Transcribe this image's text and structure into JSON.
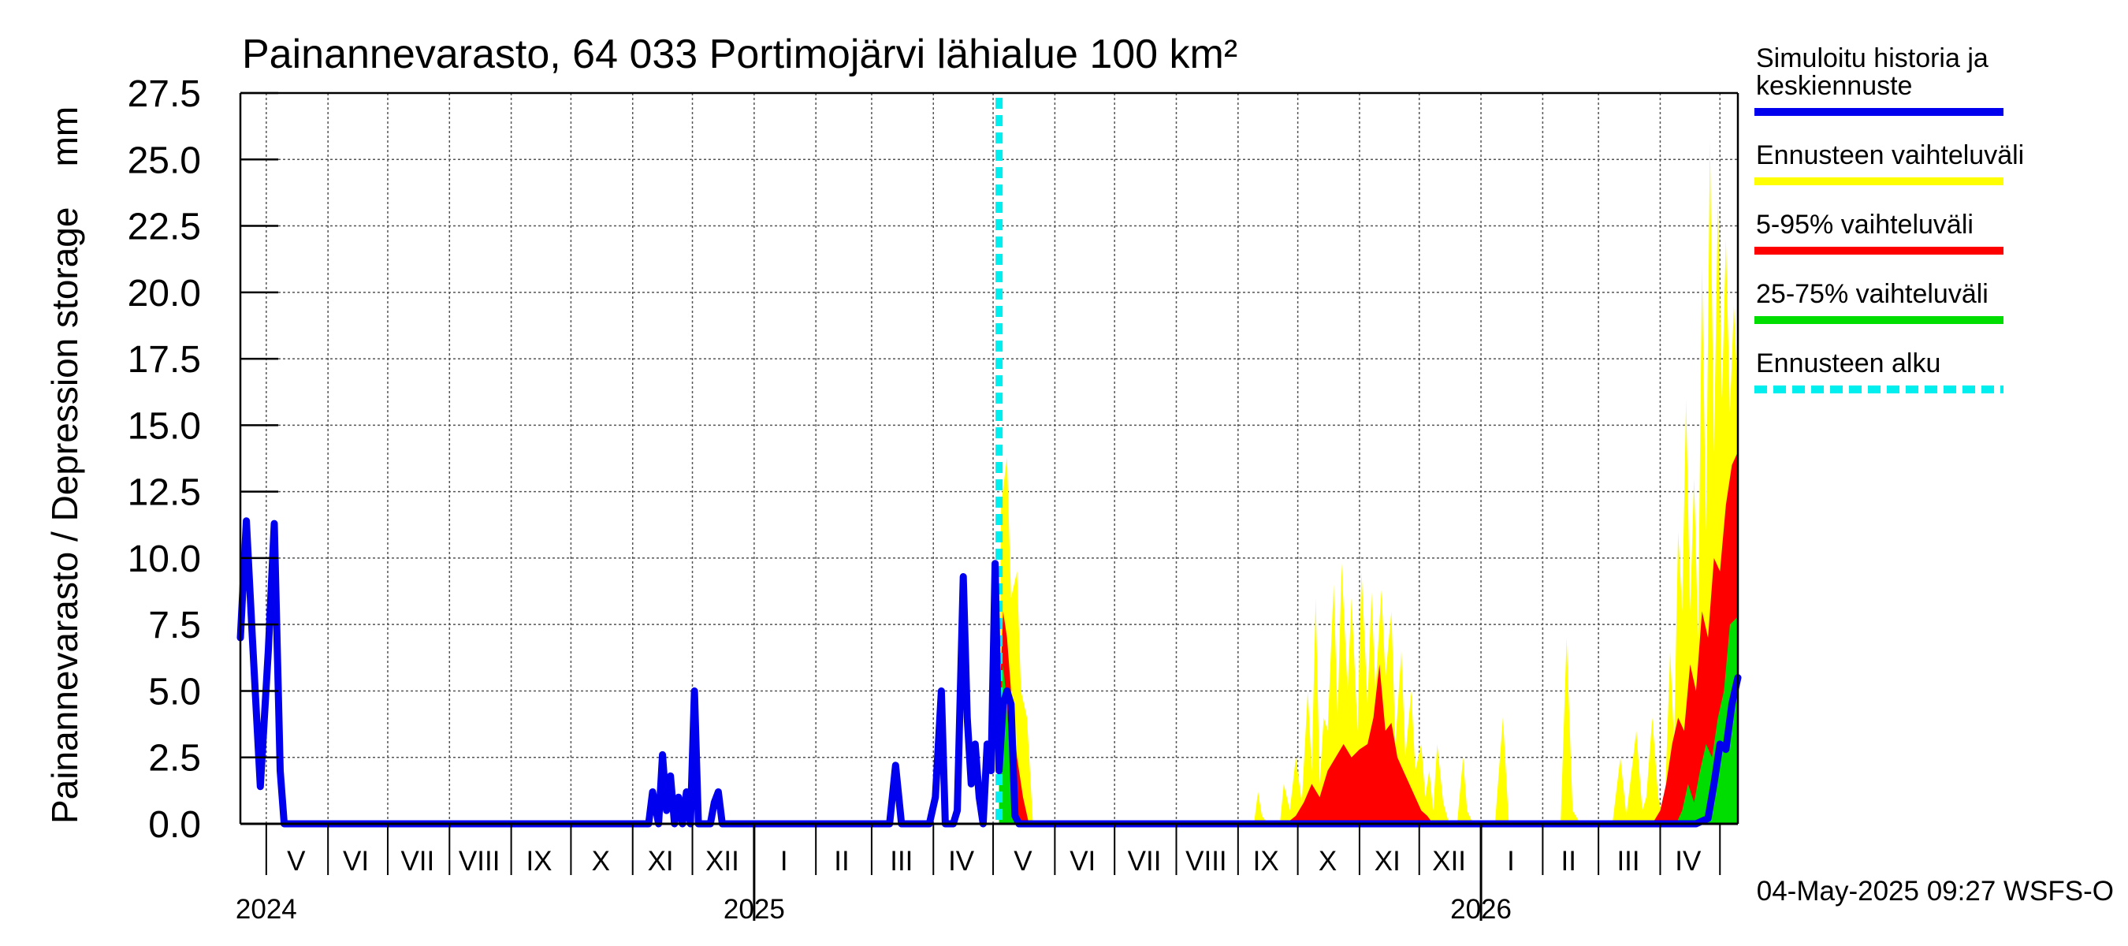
{
  "chart_data": {
    "type": "area",
    "title": "Painannevarasto, 64 033 Portimojärvi lähialue 100 km²",
    "ylabel": "Painannevarasto / Depression storage    mm",
    "ylim": [
      0,
      27.5
    ],
    "yticks": [
      "0.0",
      "2.5",
      "5.0",
      "7.5",
      "10.0",
      "12.5",
      "15.0",
      "17.5",
      "20.0",
      "22.5",
      "25.0",
      "27.5"
    ],
    "xlim": [
      "2024-04-18",
      "2026-05-10"
    ],
    "forecast_start": "2025-05-04",
    "grid": true,
    "legend_position": "right",
    "month_labels": [
      {
        "label": "V",
        "date": "2024-05-16"
      },
      {
        "label": "VI",
        "date": "2024-06-15"
      },
      {
        "label": "VII",
        "date": "2024-07-16"
      },
      {
        "label": "VIII",
        "date": "2024-08-16"
      },
      {
        "label": "IX",
        "date": "2024-09-15"
      },
      {
        "label": "X",
        "date": "2024-10-16"
      },
      {
        "label": "XI",
        "date": "2024-11-15"
      },
      {
        "label": "XII",
        "date": "2024-12-16"
      },
      {
        "label": "I",
        "date": "2025-01-16"
      },
      {
        "label": "II",
        "date": "2025-02-14"
      },
      {
        "label": "III",
        "date": "2025-03-16"
      },
      {
        "label": "IV",
        "date": "2025-04-15"
      },
      {
        "label": "V",
        "date": "2025-05-16"
      },
      {
        "label": "VI",
        "date": "2025-06-15"
      },
      {
        "label": "VII",
        "date": "2025-07-16"
      },
      {
        "label": "VIII",
        "date": "2025-08-16"
      },
      {
        "label": "IX",
        "date": "2025-09-15"
      },
      {
        "label": "X",
        "date": "2025-10-16"
      },
      {
        "label": "XI",
        "date": "2025-11-15"
      },
      {
        "label": "XII",
        "date": "2025-12-16"
      },
      {
        "label": "I",
        "date": "2026-01-16"
      },
      {
        "label": "II",
        "date": "2026-02-14"
      },
      {
        "label": "III",
        "date": "2026-03-16"
      },
      {
        "label": "IV",
        "date": "2026-04-15"
      }
    ],
    "year_labels": [
      {
        "label": "2024",
        "date": "2024-05-01"
      },
      {
        "label": "2025",
        "date": "2025-01-01"
      },
      {
        "label": "2026",
        "date": "2026-01-01"
      }
    ],
    "legend": [
      {
        "label": "Simuloitu historia ja keskiennuste",
        "lines": [
          "Simuloitu historia ja",
          "keskiennuste"
        ],
        "color": "#0000ee",
        "style": "solid"
      },
      {
        "label": "Ennusteen vaihteluväli",
        "lines": [
          "Ennusteen vaihteluväli"
        ],
        "color": "#ffff00",
        "style": "solid"
      },
      {
        "label": "5-95% vaihteluväli",
        "lines": [
          "5-95% vaihteluväli"
        ],
        "color": "#ff0000",
        "style": "solid"
      },
      {
        "label": "25-75% vaihteluväli",
        "lines": [
          "25-75% vaihteluväli"
        ],
        "color": "#00dd00",
        "style": "solid"
      },
      {
        "label": "Ennusteen alku",
        "lines": [
          "Ennusteen alku"
        ],
        "color": "#00eeee",
        "style": "dashed"
      }
    ],
    "series": [
      {
        "name": "Simuloitu historia ja keskiennuste",
        "color": "#0000ee",
        "x": [
          "2024-04-18",
          "2024-04-21",
          "2024-04-24",
          "2024-04-28",
          "2024-05-02",
          "2024-05-05",
          "2024-05-08",
          "2024-05-10",
          "2024-05-13",
          "2024-05-16",
          "2024-05-20",
          "2024-11-09",
          "2024-11-11",
          "2024-11-14",
          "2024-11-16",
          "2024-11-18",
          "2024-11-20",
          "2024-11-22",
          "2024-11-24",
          "2024-11-26",
          "2024-11-28",
          "2024-11-30",
          "2024-12-02",
          "2024-12-04",
          "2024-12-06",
          "2024-12-08",
          "2024-12-10",
          "2024-12-12",
          "2024-12-14",
          "2024-12-16",
          "2024-12-18",
          "2024-12-20",
          "2024-12-22",
          "2024-12-24",
          "2024-12-27",
          "2024-12-30",
          "2025-03-08",
          "2025-03-10",
          "2025-03-13",
          "2025-03-16",
          "2025-03-30",
          "2025-04-02",
          "2025-04-05",
          "2025-04-07",
          "2025-04-09",
          "2025-04-11",
          "2025-04-13",
          "2025-04-16",
          "2025-04-18",
          "2025-04-20",
          "2025-04-22",
          "2025-04-24",
          "2025-04-26",
          "2025-04-28",
          "2025-04-30",
          "2025-05-02",
          "2025-05-04",
          "2025-05-06",
          "2025-05-08",
          "2025-05-10",
          "2025-05-12",
          "2025-05-14",
          "2025-05-17",
          "2025-05-20",
          "2026-04-15",
          "2026-04-19",
          "2026-04-22",
          "2026-04-25",
          "2026-04-28",
          "2026-05-01",
          "2026-05-04",
          "2026-05-07",
          "2026-05-10"
        ],
        "y": [
          7.0,
          11.4,
          7.0,
          1.4,
          6.5,
          11.3,
          2.0,
          0,
          0,
          0,
          0,
          0,
          1.2,
          0,
          2.6,
          0.5,
          1.8,
          0,
          1.0,
          0,
          1.2,
          0,
          5.0,
          0,
          0,
          0,
          0,
          0.8,
          1.2,
          0,
          0,
          0,
          0,
          0,
          0,
          0,
          0,
          0,
          2.2,
          0,
          0,
          1.0,
          5.0,
          0,
          0,
          0,
          0.5,
          9.3,
          4.0,
          1.5,
          3.0,
          1.0,
          0,
          3.0,
          2.0,
          9.8,
          2.0,
          4.5,
          5.0,
          4.5,
          0.3,
          0,
          0,
          0,
          0,
          0,
          0.1,
          0.2,
          1.5,
          3.0,
          2.8,
          4.5,
          5.5
        ]
      },
      {
        "name": "Ennusteen vaihteluväli",
        "color": "#ffff00",
        "x": [
          "2025-05-04",
          "2025-05-05",
          "2025-05-08",
          "2025-05-10",
          "2025-05-13",
          "2025-05-15",
          "2025-05-18",
          "2025-05-21",
          "2025-09-09",
          "2025-09-11",
          "2025-09-13",
          "2025-09-16",
          "2025-09-22",
          "2025-09-24",
          "2025-09-27",
          "2025-09-30",
          "2025-10-03",
          "2025-10-06",
          "2025-10-08",
          "2025-10-10",
          "2025-10-12",
          "2025-10-14",
          "2025-10-16",
          "2025-10-19",
          "2025-10-21",
          "2025-10-23",
          "2025-10-26",
          "2025-10-28",
          "2025-10-31",
          "2025-11-02",
          "2025-11-05",
          "2025-11-07",
          "2025-11-09",
          "2025-11-12",
          "2025-11-14",
          "2025-11-17",
          "2025-11-19",
          "2025-11-22",
          "2025-11-24",
          "2025-11-27",
          "2025-11-29",
          "2025-12-02",
          "2025-12-04",
          "2025-12-06",
          "2025-12-08",
          "2025-12-10",
          "2025-12-13",
          "2025-12-16",
          "2025-12-20",
          "2025-12-23",
          "2025-12-25",
          "2025-12-28",
          "2026-01-08",
          "2026-01-12",
          "2026-01-15",
          "2026-01-20",
          "2026-02-10",
          "2026-02-13",
          "2026-02-16",
          "2026-02-20",
          "2026-03-08",
          "2026-03-12",
          "2026-03-15",
          "2026-03-20",
          "2026-03-23",
          "2026-03-25",
          "2026-03-28",
          "2026-03-31",
          "2026-04-03",
          "2026-04-06",
          "2026-04-08",
          "2026-04-10",
          "2026-04-12",
          "2026-04-14",
          "2026-04-16",
          "2026-04-18",
          "2026-04-20",
          "2026-04-22",
          "2026-04-24",
          "2026-04-26",
          "2026-04-28",
          "2026-04-30",
          "2026-05-02",
          "2026-05-04",
          "2026-05-06",
          "2026-05-08",
          "2026-05-10"
        ],
        "y": [
          5.0,
          12.0,
          13.8,
          8.5,
          9.5,
          5.0,
          4.0,
          0,
          0,
          1.2,
          0.3,
          0,
          0,
          1.5,
          0.5,
          2.5,
          0.8,
          5.0,
          2.0,
          8.5,
          1.5,
          4.0,
          3.5,
          9.0,
          4.0,
          9.8,
          5.0,
          8.5,
          3.5,
          9.5,
          4.5,
          8.7,
          5.0,
          8.8,
          5.5,
          8.0,
          3.0,
          6.5,
          2.5,
          5.0,
          2.0,
          3.0,
          1.0,
          2.0,
          0.5,
          3.0,
          0.8,
          0,
          0,
          2.5,
          0.5,
          0,
          0,
          4.0,
          0,
          0,
          0,
          7.0,
          0.5,
          0,
          0,
          2.5,
          0.3,
          3.5,
          0.5,
          1.0,
          4.0,
          1.0,
          0,
          6.5,
          3.0,
          11.0,
          8.0,
          16.0,
          8.0,
          13.0,
          7.0,
          21.0,
          11.0,
          25.7,
          14.0,
          23.5,
          16.0,
          22.0,
          15.5,
          19.5,
          16.0
        ]
      },
      {
        "name": "5-95% vaihteluväli",
        "color": "#ff0000",
        "x": [
          "2025-05-04",
          "2025-05-06",
          "2025-05-08",
          "2025-05-10",
          "2025-05-13",
          "2025-05-16",
          "2025-05-19",
          "2025-09-25",
          "2025-09-30",
          "2025-10-04",
          "2025-10-08",
          "2025-10-12",
          "2025-10-16",
          "2025-10-20",
          "2025-10-24",
          "2025-10-28",
          "2025-11-01",
          "2025-11-05",
          "2025-11-08",
          "2025-11-11",
          "2025-11-14",
          "2025-11-17",
          "2025-11-20",
          "2025-11-23",
          "2025-11-26",
          "2025-11-29",
          "2025-12-02",
          "2025-12-05",
          "2025-12-08",
          "2025-12-11",
          "2026-03-28",
          "2026-04-01",
          "2026-04-04",
          "2026-04-07",
          "2026-04-10",
          "2026-04-13",
          "2026-04-16",
          "2026-04-19",
          "2026-04-22",
          "2026-04-25",
          "2026-04-28",
          "2026-05-01",
          "2026-05-04",
          "2026-05-07",
          "2026-05-10"
        ],
        "y": [
          4.0,
          8.0,
          7.0,
          5.0,
          2.5,
          1.0,
          0,
          0,
          0.3,
          0.8,
          1.5,
          1.0,
          2.0,
          2.5,
          3.0,
          2.5,
          2.8,
          3.0,
          4.0,
          6.0,
          3.5,
          3.8,
          2.5,
          2.0,
          1.5,
          1.0,
          0.5,
          0.3,
          0,
          0,
          0,
          0.5,
          1.5,
          3.0,
          4.0,
          3.5,
          6.0,
          5.0,
          8.0,
          7.0,
          10.0,
          9.5,
          12.0,
          13.5,
          14.0
        ]
      },
      {
        "name": "25-75% vaihteluväli",
        "color": "#00dd00",
        "x": [
          "2025-05-04",
          "2025-05-06",
          "2025-05-08",
          "2025-05-10",
          "2025-05-13",
          "2025-05-16",
          "2026-04-09",
          "2026-04-12",
          "2026-04-15",
          "2026-04-18",
          "2026-04-21",
          "2026-04-24",
          "2026-04-27",
          "2026-04-30",
          "2026-05-03",
          "2026-05-06",
          "2026-05-10"
        ],
        "y": [
          3.0,
          6.0,
          4.5,
          1.5,
          0.3,
          0,
          0,
          0.5,
          1.5,
          0.8,
          2.0,
          3.0,
          2.5,
          4.0,
          5.0,
          7.5,
          7.8
        ]
      }
    ]
  },
  "footer": {
    "timestamp": "04-May-2025 09:27 WSFS-O"
  }
}
